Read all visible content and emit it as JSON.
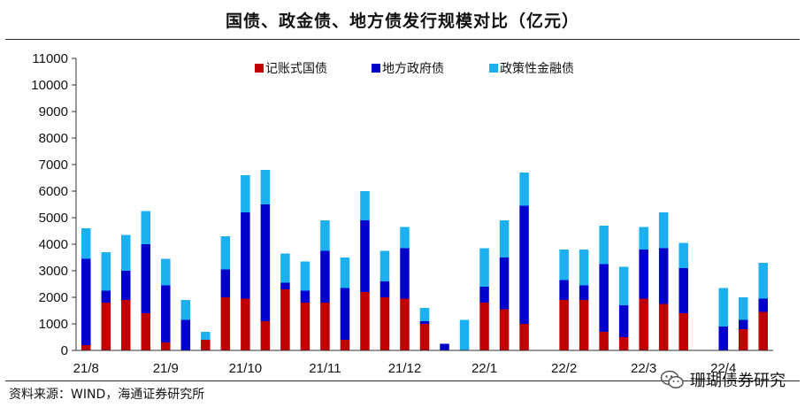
{
  "title": "国债、政金债、地方债发行规模对比（亿元）",
  "source": "资料来源：WIND，海通证券研究所",
  "watermark": "珊瑚债券研究",
  "chart_data": {
    "type": "bar",
    "stacked": true,
    "ylim": [
      0,
      11000
    ],
    "yticks": [
      0,
      1000,
      2000,
      3000,
      4000,
      5000,
      6000,
      7000,
      8000,
      9000,
      10000,
      11000
    ],
    "xtick_labels": [
      "21/8",
      "21/9",
      "21/10",
      "21/11",
      "21/12",
      "22/1",
      "22/2",
      "22/3",
      "22/4"
    ],
    "xtick_indices": [
      0,
      4,
      8,
      12,
      16,
      20,
      24,
      28,
      32
    ],
    "legend_position": "top",
    "series": [
      {
        "name": "记账式国债",
        "color": "#c00000",
        "values": [
          200,
          1800,
          1900,
          1400,
          300,
          0,
          400,
          2000,
          1950,
          1100,
          2300,
          1800,
          1800,
          400,
          2200,
          2000,
          1950,
          1000,
          0,
          0,
          1800,
          1550,
          1000,
          0,
          1900,
          1900,
          700,
          500,
          1950,
          1750,
          1400,
          0,
          0,
          800,
          1450
        ]
      },
      {
        "name": "地方政府债",
        "color": "#0000cc",
        "values": [
          3250,
          450,
          1100,
          2600,
          2150,
          1150,
          0,
          1050,
          3250,
          4400,
          250,
          450,
          1950,
          1950,
          2700,
          600,
          1900,
          100,
          250,
          0,
          600,
          1950,
          4450,
          0,
          750,
          550,
          2550,
          1200,
          1850,
          2100,
          1700,
          0,
          900,
          350,
          500
        ]
      },
      {
        "name": "政策性金融债",
        "color": "#1cb0f0",
        "values": [
          1150,
          1450,
          1350,
          1250,
          1000,
          750,
          300,
          1250,
          1400,
          1300,
          1100,
          1100,
          1150,
          1150,
          1100,
          1150,
          800,
          500,
          0,
          1150,
          1450,
          1400,
          1250,
          0,
          1150,
          1350,
          1450,
          1450,
          850,
          1350,
          950,
          0,
          1450,
          850,
          1350
        ]
      }
    ]
  }
}
